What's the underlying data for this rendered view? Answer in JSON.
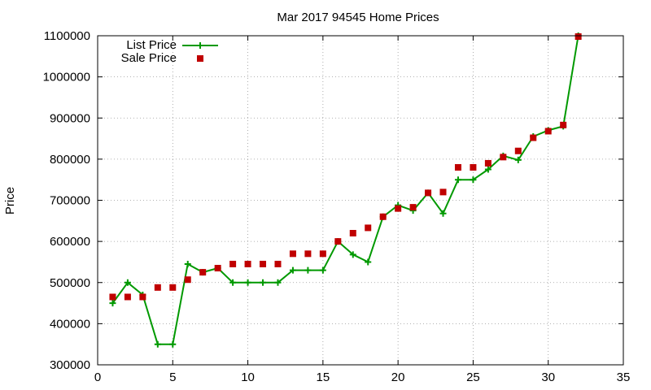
{
  "chart_data": {
    "type": "line",
    "title": "Mar 2017 94545 Home Prices",
    "xlabel": "",
    "ylabel": "Price",
    "xlim": [
      0,
      35
    ],
    "ylim": [
      300000,
      1100000
    ],
    "xticks": [
      0,
      5,
      10,
      15,
      20,
      25,
      30,
      35
    ],
    "yticks": [
      300000,
      400000,
      500000,
      600000,
      700000,
      800000,
      900000,
      1000000,
      1100000
    ],
    "grid": true,
    "legend_position": "top-left",
    "series": [
      {
        "name": "List Price",
        "style": "line-plus",
        "color": "#009900",
        "x": [
          1,
          2,
          3,
          4,
          5,
          6,
          7,
          8,
          9,
          10,
          11,
          12,
          13,
          14,
          15,
          16,
          17,
          18,
          19,
          20,
          21,
          22,
          23,
          24,
          25,
          26,
          27,
          28,
          29,
          30,
          31,
          32
        ],
        "y": [
          450000,
          500000,
          470000,
          350000,
          350000,
          545000,
          525000,
          535000,
          500000,
          500000,
          500000,
          500000,
          530000,
          530000,
          530000,
          600000,
          568000,
          550000,
          660000,
          688000,
          675000,
          718000,
          668000,
          750000,
          750000,
          775000,
          808000,
          798000,
          855000,
          870000,
          880000,
          1100000
        ]
      },
      {
        "name": "Sale Price",
        "style": "square",
        "color": "#c00000",
        "x": [
          1,
          2,
          3,
          4,
          5,
          6,
          7,
          8,
          9,
          10,
          11,
          12,
          13,
          14,
          15,
          16,
          17,
          18,
          19,
          20,
          21,
          22,
          23,
          24,
          25,
          26,
          27,
          28,
          29,
          30,
          31,
          32
        ],
        "y": [
          465000,
          465000,
          465000,
          488000,
          488000,
          507000,
          525000,
          535000,
          545000,
          545000,
          545000,
          545000,
          570000,
          570000,
          570000,
          600000,
          620000,
          633000,
          660000,
          680000,
          683000,
          718000,
          720000,
          780000,
          780000,
          790000,
          805000,
          820000,
          852000,
          868000,
          883000,
          1098000
        ]
      }
    ]
  }
}
